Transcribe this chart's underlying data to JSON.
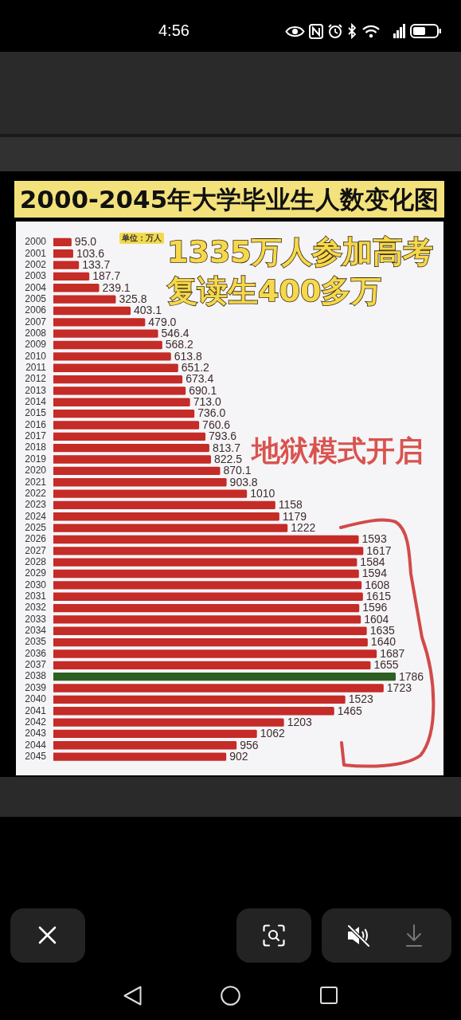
{
  "chart_data": {
    "type": "bar",
    "orientation": "horizontal",
    "title": "2000-2045年大学毕业生人数变化图",
    "categories": [
      "2000",
      "2001",
      "2002",
      "2003",
      "2004",
      "2005",
      "2006",
      "2007",
      "2008",
      "2009",
      "2010",
      "2011",
      "2012",
      "2013",
      "2014",
      "2015",
      "2016",
      "2017",
      "2018",
      "2019",
      "2020",
      "2021",
      "2022",
      "2023",
      "2024",
      "2025",
      "2026",
      "2027",
      "2028",
      "2029",
      "2030",
      "2031",
      "2032",
      "2033",
      "2034",
      "2035",
      "2036",
      "2037",
      "2038",
      "2039",
      "2040",
      "2041",
      "2042",
      "2043",
      "2044",
      "2045"
    ],
    "values": [
      95.0,
      103.6,
      133.7,
      187.7,
      239.1,
      325.8,
      403.1,
      479.0,
      546.4,
      568.2,
      613.8,
      651.2,
      673.4,
      690.1,
      713.0,
      736.0,
      760.6,
      793.6,
      813.7,
      822.5,
      870.1,
      903.8,
      1010,
      1158,
      1179,
      1222,
      1593,
      1617,
      1584,
      1594,
      1608,
      1615,
      1596,
      1604,
      1635,
      1640,
      1687,
      1655,
      1786,
      1723,
      1523,
      1465,
      1203,
      1062,
      956,
      902
    ],
    "value_labels": [
      "95.0",
      "103.6",
      "133.7",
      "187.7",
      "239.1",
      "325.8",
      "403.1",
      "479.0",
      "546.4",
      "568.2",
      "613.8",
      "651.2",
      "673.4",
      "690.1",
      "713.0",
      "736.0",
      "760.6",
      "793.6",
      "813.7",
      "822.5",
      "870.1",
      "903.8",
      "1010",
      "1158",
      "1179",
      "1222",
      "1593",
      "1617",
      "1584",
      "1594",
      "1608",
      "1615",
      "1596",
      "1604",
      "1635",
      "1640",
      "1687",
      "1655",
      "1786",
      "1723",
      "1523",
      "1465",
      "1203",
      "1062",
      "956",
      "902"
    ],
    "colors": [
      "#c52b27",
      "#c52b27",
      "#c52b27",
      "#c52b27",
      "#c52b27",
      "#c52b27",
      "#c52b27",
      "#c52b27",
      "#c52b27",
      "#c52b27",
      "#c52b27",
      "#c52b27",
      "#c52b27",
      "#c52b27",
      "#c52b27",
      "#c52b27",
      "#c52b27",
      "#c52b27",
      "#c52b27",
      "#c52b27",
      "#c52b27",
      "#c52b27",
      "#c52b27",
      "#c52b27",
      "#c52b27",
      "#c52b27",
      "#c52b27",
      "#c52b27",
      "#c52b27",
      "#c52b27",
      "#c52b27",
      "#c52b27",
      "#c52b27",
      "#c52b27",
      "#c52b27",
      "#c52b27",
      "#c52b27",
      "#c52b27",
      "#2c5f21",
      "#c52b27",
      "#c52b27",
      "#c52b27",
      "#c52b27",
      "#c52b27",
      "#c52b27",
      "#c52b27"
    ],
    "tick_labels": "y",
    "annotations": [
      "单位：万人",
      "1335万人参加高考",
      "复读生400多万",
      "地狱模式开启",
      "4:56"
    ]
  }
}
